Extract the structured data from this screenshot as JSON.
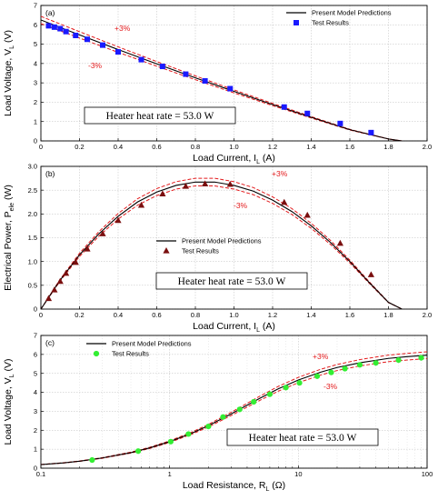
{
  "chart_data": [
    {
      "panel": "(a)",
      "type": "line",
      "xlabel": "Load Current, I",
      "xlabel_sub": "L",
      "xlabel_unit": " (A)",
      "ylabel": "Load Voltage, V",
      "ylabel_sub": "L",
      "ylabel_unit": " (V)",
      "xscale": "linear",
      "xlim": [
        0,
        2.0
      ],
      "ylim": [
        0,
        7
      ],
      "xticks": [
        "0",
        "0.2",
        "0.4",
        "0.6",
        "0.8",
        "1.0",
        "1.2",
        "1.4",
        "1.6",
        "1.8",
        "2.0"
      ],
      "yticks": [
        "0",
        "1",
        "2",
        "3",
        "4",
        "5",
        "6",
        "7"
      ],
      "grid": true,
      "legend_position": "top-right",
      "annotation": "Heater heat rate = 53.0 W",
      "band_labels": [
        "+3%",
        "-3%"
      ],
      "series": [
        {
          "name": "Present Model Predictions",
          "kind": "line",
          "color": "#000000",
          "x": [
            0,
            0.2,
            0.4,
            0.6,
            0.8,
            1.0,
            1.2,
            1.4,
            1.6,
            1.8,
            1.87
          ],
          "y": [
            6.25,
            5.48,
            4.72,
            3.98,
            3.26,
            2.56,
            1.88,
            1.22,
            0.58,
            0.1,
            0
          ]
        },
        {
          "name": "Test Results",
          "kind": "scatter",
          "marker": "square",
          "color": "#1a1aff",
          "x": [
            0.04,
            0.07,
            0.1,
            0.13,
            0.18,
            0.24,
            0.32,
            0.4,
            0.52,
            0.63,
            0.75,
            0.85,
            0.98,
            1.26,
            1.38,
            1.55,
            1.71
          ],
          "y": [
            5.95,
            5.88,
            5.8,
            5.65,
            5.45,
            5.25,
            4.95,
            4.6,
            4.2,
            3.85,
            3.45,
            3.1,
            2.7,
            1.75,
            1.42,
            0.9,
            0.43
          ]
        }
      ]
    },
    {
      "panel": "(b)",
      "type": "line",
      "xlabel": "Load Current, I",
      "xlabel_sub": "L",
      "xlabel_unit": " (A)",
      "ylabel": "Electrical Power, P",
      "ylabel_sub": "ele",
      "ylabel_unit": " (W)",
      "xscale": "linear",
      "xlim": [
        0,
        2.0
      ],
      "ylim": [
        0,
        3.0
      ],
      "xticks": [
        "0",
        "0.2",
        "0.4",
        "0.6",
        "0.8",
        "1.0",
        "1.2",
        "1.4",
        "1.6",
        "1.8",
        "2.0"
      ],
      "yticks": [
        "0",
        "0.5",
        "1.0",
        "1.5",
        "2.0",
        "2.5",
        "3.0"
      ],
      "grid": true,
      "legend_position": "center-right",
      "annotation": "Heater heat rate = 53.0 W",
      "band_labels": [
        "+3%",
        "-3%"
      ],
      "series": [
        {
          "name": "Present Model Predictions",
          "kind": "line",
          "color": "#000000",
          "x": [
            0,
            0.1,
            0.2,
            0.3,
            0.4,
            0.5,
            0.6,
            0.7,
            0.8,
            0.9,
            1.0,
            1.1,
            1.2,
            1.3,
            1.4,
            1.5,
            1.6,
            1.7,
            1.8,
            1.87
          ],
          "y": [
            0,
            0.61,
            1.14,
            1.58,
            1.95,
            2.25,
            2.46,
            2.6,
            2.67,
            2.67,
            2.6,
            2.48,
            2.29,
            2.05,
            1.75,
            1.4,
            1.0,
            0.56,
            0.14,
            0
          ]
        },
        {
          "name": "Test Results",
          "kind": "scatter",
          "marker": "triangle",
          "color": "#7a0f0f",
          "x": [
            0.04,
            0.07,
            0.1,
            0.13,
            0.18,
            0.24,
            0.32,
            0.4,
            0.52,
            0.63,
            0.75,
            0.85,
            0.98,
            1.26,
            1.38,
            1.55,
            1.71
          ],
          "y": [
            0.22,
            0.4,
            0.58,
            0.75,
            0.98,
            1.26,
            1.58,
            1.86,
            2.18,
            2.42,
            2.58,
            2.63,
            2.62,
            2.24,
            1.97,
            1.38,
            0.72
          ]
        }
      ]
    },
    {
      "panel": "(c)",
      "type": "line",
      "xlabel": "Load Resistance, R",
      "xlabel_sub": "L",
      "xlabel_unit": " (Ω)",
      "ylabel": "Load Voltage, V",
      "ylabel_sub": "L",
      "ylabel_unit": " (V)",
      "xscale": "log",
      "xlim": [
        0.1,
        100
      ],
      "ylim": [
        0,
        7
      ],
      "xticks": [
        "0.1",
        "1",
        "10",
        "100"
      ],
      "yticks": [
        "0",
        "1",
        "2",
        "3",
        "4",
        "5",
        "6",
        "7"
      ],
      "grid": true,
      "legend_position": "top-left",
      "annotation": "Heater heat rate = 53.0 W",
      "band_labels": [
        "+3%",
        "-3%"
      ],
      "series": [
        {
          "name": "Present Model Predictions",
          "kind": "line",
          "color": "#000000",
          "x": [
            0.1,
            0.15,
            0.2,
            0.3,
            0.5,
            0.7,
            1,
            1.5,
            2,
            3,
            5,
            7,
            10,
            15,
            20,
            30,
            50,
            70,
            100
          ],
          "y": [
            0.19,
            0.28,
            0.37,
            0.54,
            0.82,
            1.07,
            1.4,
            1.86,
            2.24,
            2.86,
            3.68,
            4.19,
            4.65,
            5.07,
            5.31,
            5.56,
            5.79,
            5.88,
            5.96
          ]
        },
        {
          "name": "Test Results",
          "kind": "scatter",
          "marker": "circle",
          "color": "#33ee33",
          "x": [
            0.25,
            0.57,
            1.02,
            1.4,
            2.0,
            2.6,
            3.5,
            4.5,
            6.0,
            8.0,
            10.2,
            14.0,
            18.0,
            23.0,
            30.0,
            40.0,
            60.0,
            90.0
          ],
          "y": [
            0.43,
            0.9,
            1.4,
            1.8,
            2.2,
            2.7,
            3.1,
            3.5,
            3.9,
            4.25,
            4.5,
            4.85,
            5.05,
            5.25,
            5.45,
            5.55,
            5.7,
            5.82
          ]
        }
      ]
    }
  ]
}
